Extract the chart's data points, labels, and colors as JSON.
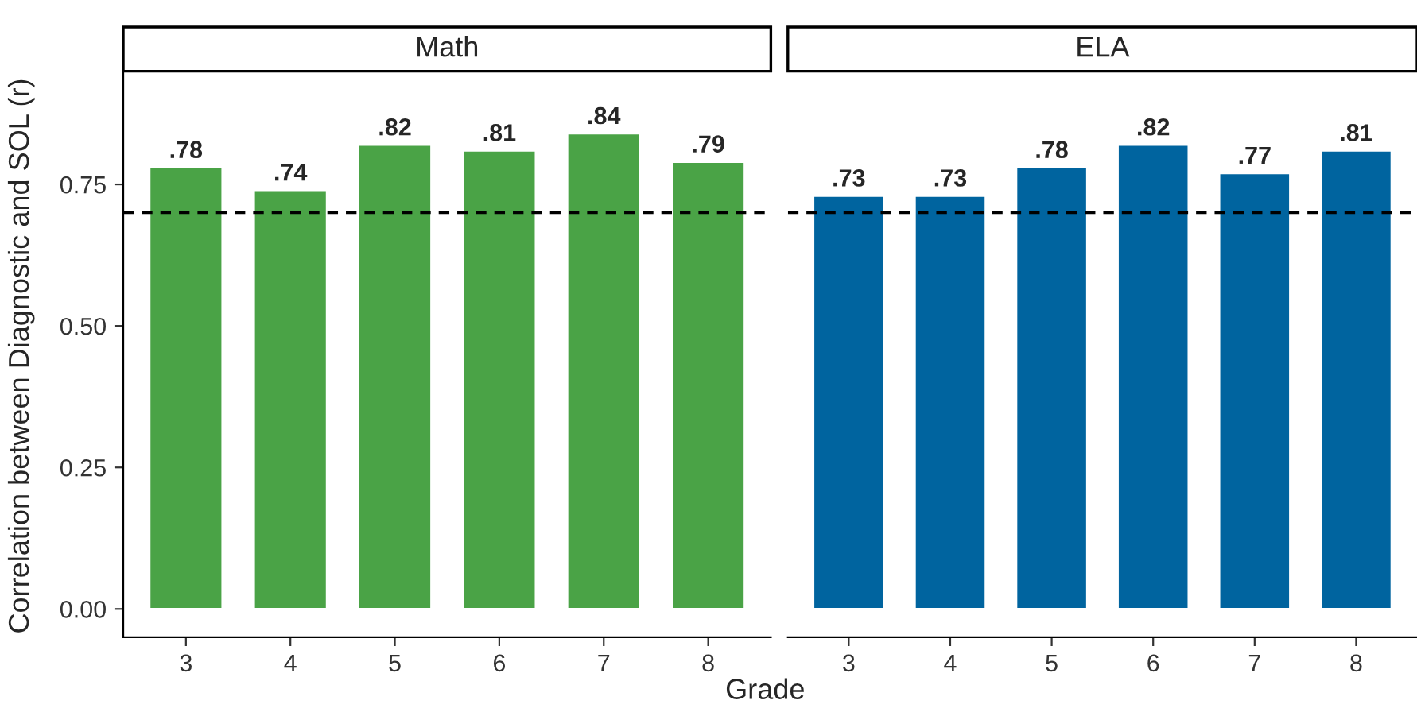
{
  "chart_data": [
    {
      "type": "bar",
      "title": "Math",
      "xlabel": "Grade",
      "ylabel": "Correlation between Diagnostic and SOL (r)",
      "categories": [
        "3",
        "4",
        "5",
        "6",
        "7",
        "8"
      ],
      "values": [
        0.78,
        0.74,
        0.82,
        0.81,
        0.84,
        0.79
      ],
      "color": "#4aa346",
      "value_labels": [
        ".78",
        ".74",
        ".82",
        ".81",
        ".84",
        ".79"
      ],
      "ylim": [
        -0.05,
        0.95
      ],
      "yticks": [
        {
          "value": 0,
          "label": "0.00"
        },
        {
          "value": 0.25,
          "label": "0.25"
        },
        {
          "value": 0.5,
          "label": "0.50"
        },
        {
          "value": 0.75,
          "label": "0.75"
        }
      ],
      "ref_lines": [
        {
          "axis": "y",
          "value": 0.7,
          "color": "#000000",
          "line_style": "dashed"
        }
      ],
      "grid": false
    },
    {
      "type": "bar",
      "title": "ELA",
      "categories": [
        "3",
        "4",
        "5",
        "6",
        "7",
        "8"
      ],
      "values": [
        0.73,
        0.73,
        0.78,
        0.82,
        0.77,
        0.81
      ],
      "color": "#00649f",
      "value_labels": [
        ".73",
        ".73",
        ".78",
        ".82",
        ".77",
        ".81"
      ],
      "tick_labels": "x",
      "ref_lines": [
        {
          "axis": "y",
          "value": 0.7,
          "color": "#000000",
          "line_style": "dashed"
        }
      ],
      "grid": false
    }
  ]
}
